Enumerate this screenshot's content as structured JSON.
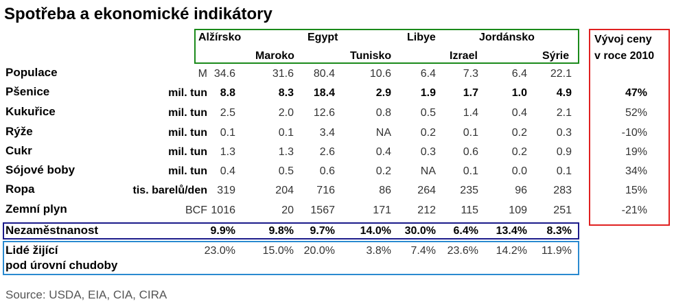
{
  "title": "Spotřeba a ekonomické indikátory",
  "countries": [
    "Alžírsko",
    "Maroko",
    "Egypt",
    "Tunisko",
    "Libye",
    "Izrael",
    "Jordánsko",
    "Sýrie"
  ],
  "price_header": [
    "Vývoj ceny",
    "v roce 2010"
  ],
  "rows": [
    {
      "label": "Populace",
      "unit": "M",
      "values": [
        "34.6",
        "31.6",
        "80.4",
        "10.6",
        "6.4",
        "7.3",
        "6.4",
        "22.1"
      ],
      "change": null
    },
    {
      "label": "Pšenice",
      "unit": "mil. tun",
      "values": [
        "8.8",
        "8.3",
        "18.4",
        "2.9",
        "1.9",
        "1.7",
        "1.0",
        "4.9"
      ],
      "change": "47%"
    },
    {
      "label": "Kukuřice",
      "unit": "mil. tun",
      "values": [
        "2.5",
        "2.0",
        "12.6",
        "0.8",
        "0.5",
        "1.4",
        "0.4",
        "2.1"
      ],
      "change": "52%"
    },
    {
      "label": "Rýže",
      "unit": "mil. tun",
      "values": [
        "0.1",
        "0.1",
        "3.4",
        "NA",
        "0.2",
        "0.1",
        "0.2",
        "0.3"
      ],
      "change": "-10%"
    },
    {
      "label": "Cukr",
      "unit": "mil. tun",
      "values": [
        "1.3",
        "1.3",
        "2.6",
        "0.4",
        "0.3",
        "0.6",
        "0.2",
        "0.9"
      ],
      "change": "19%"
    },
    {
      "label": "Sójové boby",
      "unit": "mil. tun",
      "values": [
        "0.4",
        "0.5",
        "0.6",
        "0.2",
        "NA",
        "0.1",
        "0.0",
        "0.1"
      ],
      "change": "34%"
    },
    {
      "label": "Ropa",
      "unit": "tis. barelů/den",
      "values": [
        "319",
        "204",
        "716",
        "86",
        "264",
        "235",
        "96",
        "283"
      ],
      "change": "15%"
    },
    {
      "label": "Zemní plyn",
      "unit": "BCF",
      "values": [
        "1016",
        "20",
        "1567",
        "171",
        "212",
        "115",
        "109",
        "251"
      ],
      "change": "-21%"
    }
  ],
  "unemployment": {
    "label": "Nezaměstnanost",
    "values": [
      "9.9%",
      "9.8%",
      "9.7%",
      "14.0%",
      "30.0%",
      "6.4%",
      "13.4%",
      "8.3%"
    ]
  },
  "poverty": {
    "label": [
      "Lidé žijící",
      "pod úrovní chudoby"
    ],
    "values": [
      "23.0%",
      "15.0%",
      "20.0%",
      "3.8%",
      "7.4%",
      "23.6%",
      "14.2%",
      "11.9%"
    ]
  },
  "source": "Source: USDA, EIA, CIA, CIRA"
}
